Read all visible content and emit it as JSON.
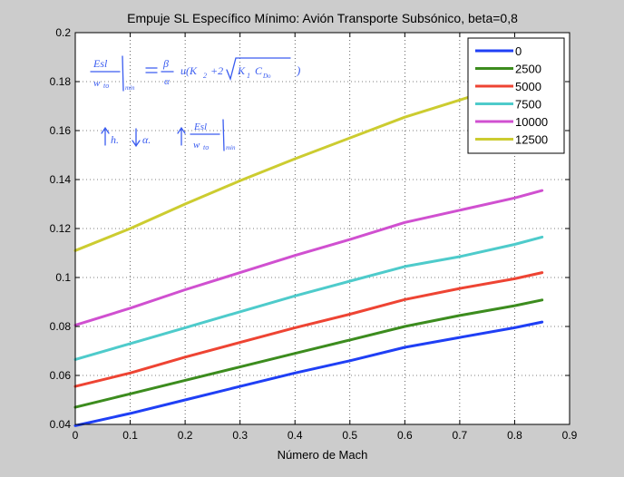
{
  "chart_data": {
    "type": "line",
    "title": "Empuje SL Específico Mínimo: Avión Transporte Subsónico, beta=0,8",
    "xlabel": "Número de Mach",
    "ylabel": "",
    "xlim": [
      0,
      0.9
    ],
    "ylim": [
      0.04,
      0.2
    ],
    "xticks": [
      0,
      0.1,
      0.2,
      0.3,
      0.4,
      0.5,
      0.6,
      0.7,
      0.8,
      0.9
    ],
    "xtick_labels": [
      "0",
      "0.1",
      "0.2",
      "0.3",
      "0.4",
      "0.5",
      "0.6",
      "0.7",
      "0.8",
      "0.9"
    ],
    "yticks": [
      0.04,
      0.06,
      0.08,
      0.1,
      0.12,
      0.14,
      0.16,
      0.18,
      0.2
    ],
    "ytick_labels": [
      "0.04",
      "0.06",
      "0.08",
      "0.1",
      "0.12",
      "0.14",
      "0.16",
      "0.18",
      "0.2"
    ],
    "grid": true,
    "legend_position": "top-right",
    "x": [
      0,
      0.1,
      0.2,
      0.3,
      0.4,
      0.5,
      0.6,
      0.7,
      0.8,
      0.85
    ],
    "series": [
      {
        "name": "0",
        "color": "#1f3ff5",
        "values": [
          0.0395,
          0.0445,
          0.05,
          0.0555,
          0.061,
          0.066,
          0.0715,
          0.0755,
          0.0795,
          0.0818
        ]
      },
      {
        "name": "2500",
        "color": "#3c8c1e",
        "values": [
          0.047,
          0.0525,
          0.058,
          0.0635,
          0.069,
          0.0745,
          0.08,
          0.0845,
          0.0885,
          0.0908
        ]
      },
      {
        "name": "5000",
        "color": "#ee4433",
        "values": [
          0.0555,
          0.061,
          0.0675,
          0.0735,
          0.0795,
          0.085,
          0.091,
          0.0955,
          0.0995,
          0.102
        ]
      },
      {
        "name": "7500",
        "color": "#4ecbcb",
        "values": [
          0.0665,
          0.073,
          0.0795,
          0.086,
          0.0925,
          0.0985,
          0.1045,
          0.1085,
          0.1135,
          0.1165
        ]
      },
      {
        "name": "10000",
        "color": "#d050d0",
        "values": [
          0.0805,
          0.0875,
          0.095,
          0.102,
          0.109,
          0.1155,
          0.1225,
          0.1275,
          0.1325,
          0.1355
        ]
      },
      {
        "name": "12500",
        "color": "#cccc30",
        "values": [
          0.111,
          0.12,
          0.13,
          0.1395,
          0.1485,
          0.157,
          0.1655,
          0.1725,
          0.1795,
          0.183
        ]
      }
    ]
  },
  "annotations": {
    "formula": "Esl/wto|min = β/α · u(K2 + 2√(K1 C_D0))",
    "note": "↑h ↓α ↑ Esl/wto|min"
  }
}
